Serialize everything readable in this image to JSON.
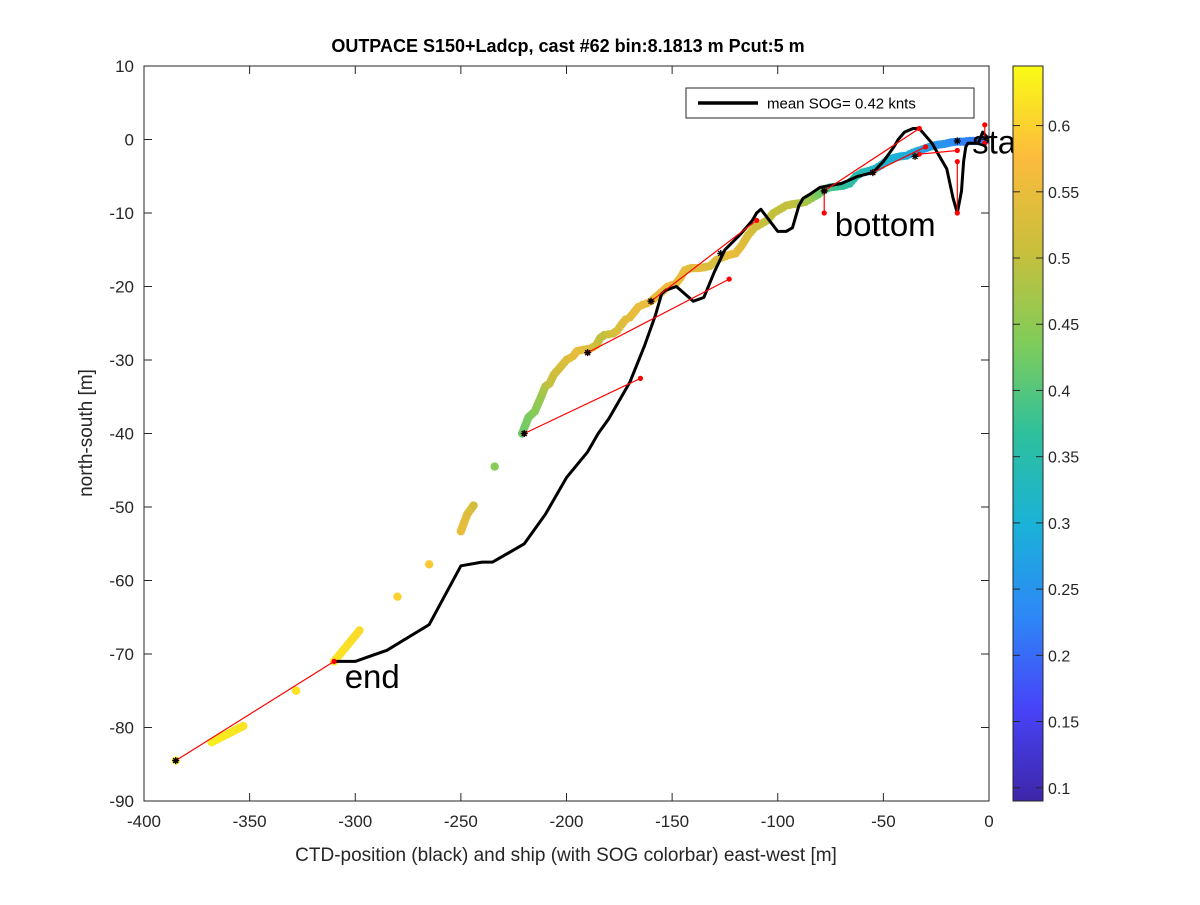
{
  "chart_data": {
    "type": "scatter",
    "title": "OUTPACE S150+Ladcp, cast #62 bin:8.1813 m  Pcut:5 m",
    "xlabel": "CTD-position (black) and ship (with SOG colorbar) east-west [m]",
    "ylabel": "north-south [m]",
    "xlim": [
      -400,
      0
    ],
    "ylim": [
      -90,
      10
    ],
    "xticks": [
      "-400",
      "-350",
      "-300",
      "-250",
      "-200",
      "-150",
      "-100",
      "-50",
      "0"
    ],
    "yticks": [
      "10",
      "0",
      "-10",
      "-20",
      "-30",
      "-40",
      "-50",
      "-60",
      "-70",
      "-80",
      "-90"
    ],
    "grid": false,
    "legend": {
      "location": "top-right",
      "entries": [
        {
          "label": "mean SOG=  0.42 knts",
          "color": "#000000"
        }
      ]
    },
    "colorbar": {
      "range": [
        0.09,
        0.645
      ],
      "ticks": [
        "0.1",
        "0.15",
        "0.2",
        "0.25",
        "0.3",
        "0.35",
        "0.4",
        "0.45",
        "0.5",
        "0.55",
        "0.6"
      ],
      "colormap": [
        "#3e26a8",
        "#4743f8",
        "#2e87f7",
        "#1ab2d8",
        "#2ec09c",
        "#81cc59",
        "#c9bf3b",
        "#fcbb3d",
        "#f9fb15"
      ]
    },
    "annotations": [
      {
        "text": "start",
        "x": -8,
        "y": -0.3
      },
      {
        "text": "bottom",
        "x": -73,
        "y": -11.5
      },
      {
        "text": "end",
        "x": -305,
        "y": -73
      }
    ],
    "ctd_track": {
      "name": "CTD-position",
      "color": "#000000",
      "x": [
        -310,
        -300,
        -295,
        -285,
        -265,
        -250,
        -240,
        -235,
        -220,
        -210,
        -200,
        -190,
        -185,
        -180,
        -170,
        -163,
        -158,
        -155,
        -153,
        -148,
        -140,
        -135,
        -130,
        -125,
        -118,
        -115,
        -112,
        -110,
        -108,
        -104,
        -100,
        -96,
        -93,
        -90,
        -88,
        -85,
        -80,
        -70,
        -62,
        -55,
        -50,
        -45,
        -43,
        -40,
        -36,
        -33,
        -30,
        -27,
        -24,
        -20,
        -17,
        -15,
        -13,
        -12,
        -11,
        -10,
        -8,
        -5,
        -3,
        0
      ],
      "y": [
        -71,
        -71,
        -70.5,
        -69.5,
        -66,
        -58,
        -57.5,
        -57.5,
        -55,
        -51,
        -46,
        -42.5,
        -40,
        -38,
        -33,
        -28,
        -24,
        -21,
        -20.5,
        -20,
        -22,
        -21.5,
        -18,
        -15,
        -13,
        -12,
        -11,
        -10,
        -9.5,
        -11,
        -12.5,
        -12.5,
        -12,
        -9,
        -8,
        -7.5,
        -6.5,
        -6,
        -5,
        -4.5,
        -3,
        -1,
        0,
        1,
        1.5,
        1.5,
        0.5,
        -0.5,
        -2,
        -4,
        -8,
        -10,
        -7,
        -3,
        -1,
        -0.5,
        -0.5,
        -0.5,
        1,
        0
      ]
    },
    "ship_track": {
      "name": "ship",
      "x": [
        -385,
        -368,
        -353,
        -328,
        -310,
        -298,
        -280,
        -265,
        -250,
        -247,
        -244,
        -234,
        -221,
        -218,
        -215,
        -212,
        -210,
        -208,
        -206,
        -203,
        -200,
        -197,
        -195,
        -192,
        -189,
        -186,
        -184,
        -182,
        -180,
        -178,
        -176,
        -174,
        -172,
        -170,
        -168,
        -166,
        -164,
        -162,
        -160,
        -158,
        -156,
        -154,
        -152,
        -150,
        -148,
        -146,
        -144,
        -141,
        -138,
        -135,
        -132,
        -129,
        -126,
        -123,
        -120,
        -117,
        -114,
        -111,
        -108,
        -105,
        -102,
        -99,
        -96,
        -93,
        -90,
        -87,
        -84,
        -81,
        -78,
        -75,
        -72,
        -69,
        -66,
        -63,
        -60,
        -57,
        -54,
        -51,
        -48,
        -45,
        -42,
        -39,
        -36,
        -33,
        -30,
        -27,
        -24,
        -21,
        -18,
        -15,
        -12,
        -9,
        -6,
        -3,
        0
      ],
      "y": [
        -84.5,
        -82,
        -79.8,
        -75,
        -71,
        -66.8,
        -62.2,
        -57.8,
        -53.3,
        -51,
        -49.8,
        -44.5,
        -40,
        -37.8,
        -37,
        -35,
        -33.6,
        -33.2,
        -32,
        -31,
        -30,
        -29.5,
        -28.8,
        -28.6,
        -28.5,
        -28,
        -27,
        -26.6,
        -26.5,
        -26.4,
        -26,
        -25.2,
        -24.5,
        -24.2,
        -23.5,
        -22.8,
        -22.5,
        -22.3,
        -22,
        -21.5,
        -21,
        -20.5,
        -20,
        -19.8,
        -19.5,
        -18.8,
        -17.8,
        -17.5,
        -17.5,
        -17.4,
        -17.2,
        -16.4,
        -16,
        -15.7,
        -15.5,
        -14.4,
        -13,
        -12,
        -11.5,
        -11,
        -10,
        -9.5,
        -9,
        -8.8,
        -8.7,
        -8.5,
        -8,
        -7.5,
        -6.8,
        -6.5,
        -6.4,
        -6.3,
        -6,
        -5,
        -4.5,
        -4.3,
        -4,
        -3.5,
        -2.8,
        -2.5,
        -2.3,
        -2.2,
        -1.8,
        -1.5,
        -1.2,
        -0.9,
        -0.7,
        -0.6,
        -0.4,
        -0.3,
        -0.3,
        -0.2,
        -0.2,
        -0.1,
        0
      ],
      "sog": [
        0.645,
        0.63,
        0.62,
        0.62,
        0.62,
        0.61,
        0.6,
        0.59,
        0.55,
        0.54,
        0.52,
        0.44,
        0.42,
        0.43,
        0.44,
        0.46,
        0.48,
        0.5,
        0.51,
        0.52,
        0.53,
        0.54,
        0.55,
        0.54,
        0.53,
        0.52,
        0.5,
        0.5,
        0.51,
        0.52,
        0.53,
        0.53,
        0.54,
        0.54,
        0.55,
        0.55,
        0.55,
        0.55,
        0.55,
        0.55,
        0.55,
        0.55,
        0.56,
        0.56,
        0.55,
        0.55,
        0.55,
        0.54,
        0.54,
        0.54,
        0.53,
        0.53,
        0.54,
        0.55,
        0.55,
        0.54,
        0.53,
        0.52,
        0.51,
        0.5,
        0.5,
        0.5,
        0.5,
        0.5,
        0.49,
        0.48,
        0.46,
        0.43,
        0.41,
        0.39,
        0.38,
        0.37,
        0.36,
        0.35,
        0.34,
        0.33,
        0.32,
        0.32,
        0.31,
        0.3,
        0.3,
        0.29,
        0.29,
        0.28,
        0.27,
        0.26,
        0.25,
        0.25,
        0.24,
        0.23,
        0.22,
        0.22,
        0.21,
        0.21,
        0.2
      ]
    },
    "connectors": {
      "color": "#ff0000",
      "segments": [
        [
          [
            -385,
            -84.5
          ],
          [
            -310,
            -71
          ]
        ],
        [
          [
            -220,
            -40
          ],
          [
            -165,
            -32.5
          ]
        ],
        [
          [
            -190,
            -29
          ],
          [
            -123,
            -19
          ]
        ],
        [
          [
            -160,
            -22
          ],
          [
            -110,
            -11
          ]
        ],
        [
          [
            -78,
            -7
          ],
          [
            -33,
            1.5
          ]
        ],
        [
          [
            -78,
            -7
          ],
          [
            -78,
            -10
          ]
        ],
        [
          [
            -55,
            -4.5
          ],
          [
            -30,
            -1
          ]
        ],
        [
          [
            -33,
            -2
          ],
          [
            -15,
            -1.5
          ]
        ],
        [
          [
            -15,
            -10
          ],
          [
            -15,
            -3
          ]
        ],
        [
          [
            -2,
            2
          ],
          [
            -2,
            -0.5
          ]
        ]
      ],
      "endpoint_markers": [
        [
          -385,
          -84.5
        ],
        [
          -220,
          -40
        ],
        [
          -190,
          -29
        ],
        [
          -160,
          -22
        ],
        [
          -127,
          -15.5
        ],
        [
          -78,
          -7
        ],
        [
          -55,
          -4.5
        ],
        [
          -35,
          -2.3
        ],
        [
          -15,
          -0.2
        ],
        [
          0,
          -0.1
        ]
      ]
    }
  }
}
